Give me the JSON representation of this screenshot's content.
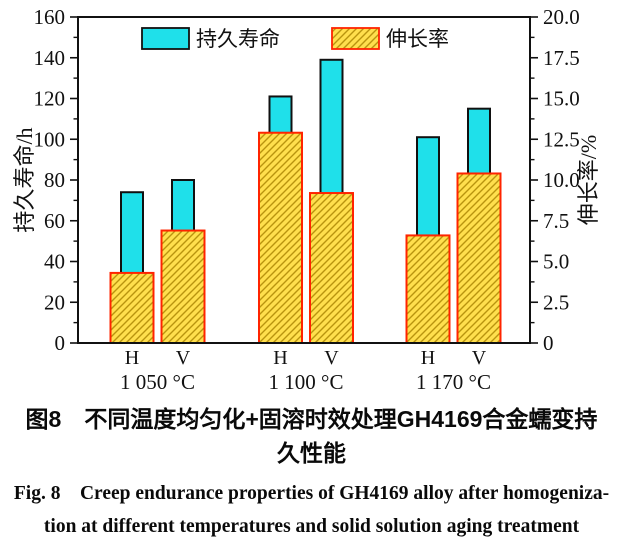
{
  "figure": {
    "caption_zh_line1": "图8　不同温度均匀化+固溶时效处理GH4169合金蠕变持",
    "caption_zh_line2": "久性能",
    "caption_en_line1": "Fig. 8　Creep endurance properties of GH4169 alloy after homogeniza-",
    "caption_en_line2": "tion at different temperatures and solid solution aging treatment"
  },
  "chart_data": {
    "type": "bar",
    "title": "",
    "group_labels": [
      "1 050 °C",
      "1 100 °C",
      "1 170 °C"
    ],
    "bar_labels": [
      "H",
      "V"
    ],
    "series": [
      {
        "name": "持久寿命",
        "axis": "left",
        "unit": "h",
        "fill": "#1fe0ea",
        "border": "#111111",
        "values": [
          [
            74,
            80
          ],
          [
            121,
            139
          ],
          [
            101,
            115
          ]
        ]
      },
      {
        "name": "伸长率",
        "axis": "right",
        "unit": "%",
        "fill": "#ffdf4d",
        "hatch_color": "#b9940e",
        "border": "#ff2400",
        "hatch": "diagonal-forward",
        "values": [
          [
            4.3,
            6.9
          ],
          [
            12.9,
            9.2
          ],
          [
            6.6,
            10.4
          ]
        ]
      }
    ],
    "axes": {
      "left": {
        "label": "持久寿命/h",
        "min": 0,
        "max": 160,
        "major_step": 20,
        "minor_step": 10,
        "tick_labels": [
          "0",
          "20",
          "40",
          "60",
          "80",
          "100",
          "120",
          "140",
          "160"
        ]
      },
      "right": {
        "label": "伸长率/%",
        "min": 0,
        "max": 20,
        "major_step": 2.5,
        "minor_step": 1.25,
        "tick_labels": [
          "0",
          "2.5",
          "5.0",
          "7.5",
          "10.0",
          "12.5",
          "15.0",
          "17.5",
          "20.0"
        ]
      }
    },
    "legend": {
      "position": "top-center",
      "entries": [
        "持久寿命",
        "伸长率"
      ]
    },
    "grid": false,
    "plot_background": "#ffffff"
  }
}
